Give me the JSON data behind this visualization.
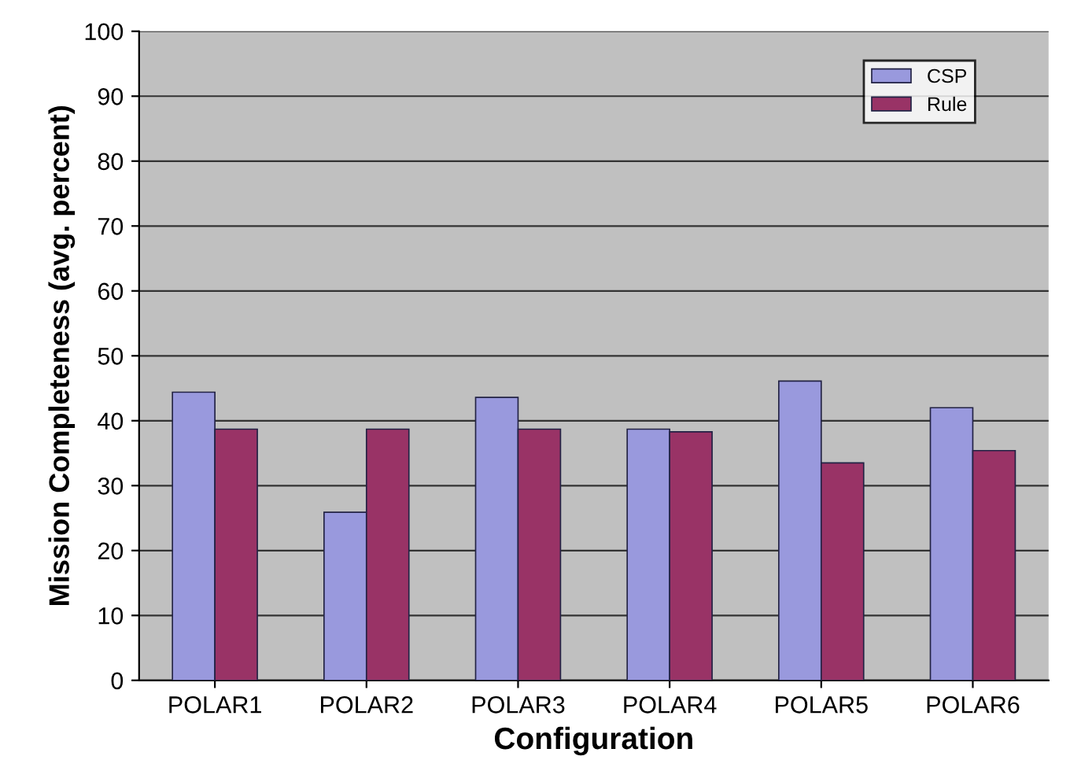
{
  "chart_data": {
    "type": "bar",
    "xlabel": "Configuration",
    "ylabel": "Mission Completeness (avg. percent)",
    "categories": [
      "POLAR1",
      "POLAR2",
      "POLAR3",
      "POLAR4",
      "POLAR5",
      "POLAR6"
    ],
    "series": [
      {
        "name": "CSP",
        "color": "#9999dd",
        "values": [
          44.4,
          25.9,
          43.6,
          38.7,
          46.1,
          42.0
        ]
      },
      {
        "name": "Rule",
        "color": "#993366",
        "values": [
          38.7,
          38.7,
          38.7,
          38.3,
          33.5,
          35.4
        ]
      }
    ],
    "ylim": [
      0,
      100
    ],
    "yticks": [
      0,
      10,
      20,
      30,
      40,
      50,
      60,
      70,
      80,
      90,
      100
    ],
    "grid": "y",
    "legend": "top right"
  }
}
